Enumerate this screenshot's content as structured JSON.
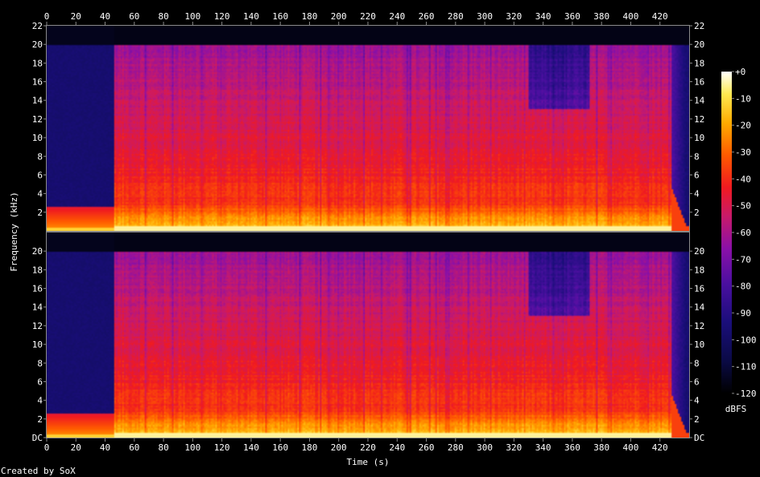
{
  "chart_data": {
    "type": "heatmap",
    "xlabel": "Time (s)",
    "ylabel": "Frequency (kHz)",
    "x_ticks": [
      0,
      20,
      40,
      60,
      80,
      100,
      120,
      140,
      160,
      180,
      200,
      220,
      240,
      260,
      280,
      300,
      320,
      340,
      360,
      380,
      400,
      420
    ],
    "xlim": [
      0,
      440
    ],
    "ylim_khz": [
      0,
      22
    ],
    "channels": [
      {
        "y_ticks": [
          2,
          4,
          6,
          8,
          10,
          12,
          14,
          16,
          18,
          20,
          22
        ]
      },
      {
        "y_ticks": [
          "DC",
          2,
          4,
          6,
          8,
          10,
          12,
          14,
          16,
          18,
          20
        ]
      }
    ],
    "colorbar": {
      "ticks": [
        "+0",
        "-10",
        "-20",
        "-30",
        "-40",
        "-50",
        "-60",
        "-70",
        "-80",
        "-90",
        "-100",
        "-110",
        "-120"
      ],
      "unit": "dBFS",
      "range_db": [
        -120,
        0
      ]
    },
    "audio_profile": {
      "content_start_s": 46,
      "content_end_s": 428,
      "cutoff_khz": 20,
      "intro_ceiling_khz": 2.5
    }
  },
  "footer": {
    "credit": "Created by SoX"
  },
  "colors": {
    "background": "#000000",
    "frame": "#8a8a8a",
    "text": "#ffffff"
  }
}
